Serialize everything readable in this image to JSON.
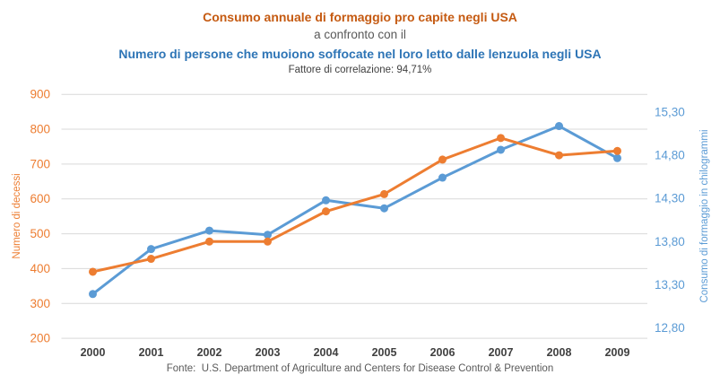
{
  "chart_data": {
    "type": "line",
    "titles": {
      "line1": "Consumo annuale di formaggio pro capite negli USA",
      "connector": "a confronto con il",
      "line2": "Numero di persone che muoiono soffocate nel loro letto dalle lenzuola negli USA",
      "correlation": "Fattore di correlazione: 94,71%"
    },
    "source": "Fonte:  U.S. Department of Agriculture and Centers for Disease Control & Prevention",
    "categories": [
      "2000",
      "2001",
      "2002",
      "2003",
      "2004",
      "2005",
      "2006",
      "2007",
      "2008",
      "2009"
    ],
    "series": [
      {
        "id": "deaths",
        "name": "Numero di decessi",
        "axis": "left",
        "color": "#5B9BD5",
        "values": [
          327,
          456,
          509,
          497,
          596,
          573,
          661,
          741,
          809,
          717
        ]
      },
      {
        "id": "cheese",
        "name": "Consumo di formaggio in chilogrammi",
        "axis": "right",
        "color": "#ED7D31",
        "values": [
          13.45,
          13.6,
          13.8,
          13.8,
          14.15,
          14.35,
          14.75,
          15.0,
          14.8,
          14.85
        ]
      }
    ],
    "axes": {
      "left": {
        "label": "Numero di decessi",
        "color": "#ED7D31",
        "min": 200,
        "max": 900,
        "step": 100,
        "tick_values": [
          200,
          300,
          400,
          500,
          600,
          700,
          800,
          900
        ],
        "tick_labels": [
          "200",
          "300",
          "400",
          "500",
          "600",
          "700",
          "800",
          "900"
        ]
      },
      "right": {
        "label": "Consumo di formaggio in chilogrammi",
        "color": "#5B9BD5",
        "min": 12.8,
        "max": 15.3,
        "step": 0.5,
        "tick_values": [
          12.8,
          13.3,
          13.8,
          14.3,
          14.8,
          15.3
        ],
        "tick_labels": [
          "12,80",
          "13,30",
          "13,80",
          "14,30",
          "14,80",
          "15,30"
        ]
      },
      "x": {
        "tick_labels": [
          "2000",
          "2001",
          "2002",
          "2003",
          "2004",
          "2005",
          "2006",
          "2007",
          "2008",
          "2009"
        ],
        "color": "#404040"
      }
    },
    "grid": true,
    "legend": "none",
    "colors": {
      "grid": "#D9D9D9",
      "title_primary": "#C55A11",
      "title_secondary": "#2E75B6",
      "subtitle": "#595959",
      "correlation_note": "#404040",
      "source": "#595959",
      "background": "#FFFFFF"
    }
  }
}
